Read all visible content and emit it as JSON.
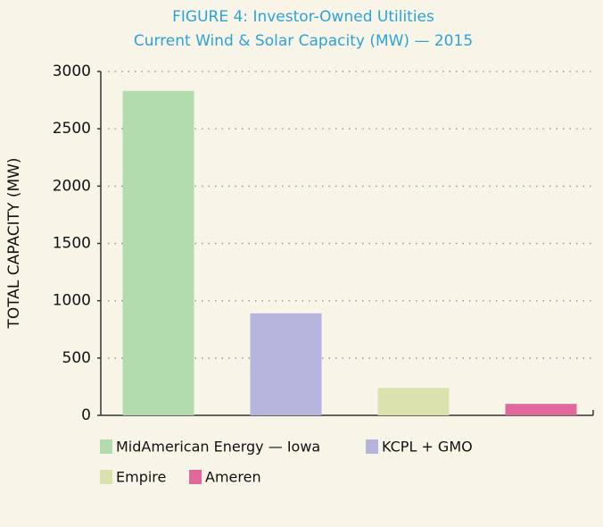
{
  "chart_data": {
    "type": "bar",
    "title": "FIGURE 4: Investor-Owned Utilities",
    "subtitle": "Current Wind & Solar Capacity (MW) — 2015",
    "y_label": "TOTAL CAPACITY (MW)",
    "categories": [
      "MidAmerican Energy — Iowa",
      "KCPL + GMO",
      "Empire",
      "Ameren"
    ],
    "values": [
      2830,
      890,
      240,
      100
    ],
    "colors": [
      "#b2dbae",
      "#b4b4dc",
      "#dce2ae",
      "#e0689a"
    ],
    "ylim": [
      0,
      3000
    ],
    "yticks": [
      0,
      500,
      1000,
      1500,
      2000,
      2500,
      3000
    ],
    "grid": true
  }
}
